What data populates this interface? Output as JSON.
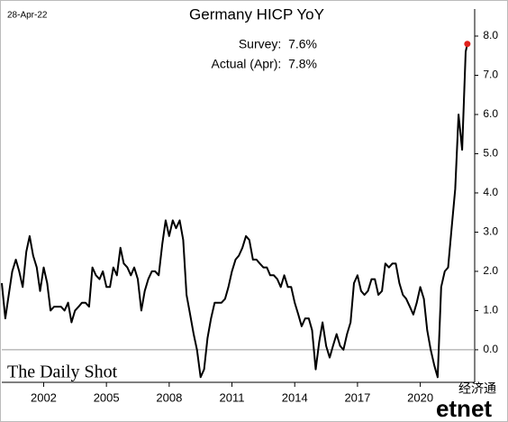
{
  "chart_data": {
    "type": "line",
    "title": "Germany HICP YoY",
    "date": "28-Apr-22",
    "annotations": [
      "Survey:  7.6%",
      "Actual (Apr):  7.8%"
    ],
    "source": "The Daily Shot",
    "watermark": [
      "经济通",
      "etnet"
    ],
    "xlim": [
      2000,
      2022.6
    ],
    "xticks": [
      2002,
      2005,
      2008,
      2011,
      2014,
      2017,
      2020
    ],
    "ylim": [
      -0.83,
      8.69
    ],
    "yticks": [
      {
        "value": 0,
        "label": "0.0"
      },
      {
        "value": 1,
        "label": "1.0"
      },
      {
        "value": 2,
        "label": "2.0"
      },
      {
        "value": 3,
        "label": "3.0"
      },
      {
        "value": 4,
        "label": "4.0"
      },
      {
        "value": 5,
        "label": "5.0"
      },
      {
        "value": 6,
        "label": "6.0"
      },
      {
        "value": 7,
        "label": "7.0"
      },
      {
        "value": 8,
        "label": "8.0"
      }
    ],
    "zero_line": true,
    "last_marker_color": "#e0201b",
    "series": [
      {
        "color": "#000000",
        "x": [
          2000.0,
          2000.17,
          2000.33,
          2000.5,
          2000.67,
          2000.83,
          2001.0,
          2001.17,
          2001.33,
          2001.5,
          2001.67,
          2001.83,
          2002.0,
          2002.17,
          2002.33,
          2002.5,
          2002.67,
          2002.83,
          2003.0,
          2003.17,
          2003.33,
          2003.5,
          2003.67,
          2003.83,
          2004.0,
          2004.17,
          2004.33,
          2004.5,
          2004.67,
          2004.83,
          2005.0,
          2005.17,
          2005.33,
          2005.5,
          2005.67,
          2005.83,
          2006.0,
          2006.17,
          2006.33,
          2006.5,
          2006.67,
          2006.83,
          2007.0,
          2007.17,
          2007.33,
          2007.5,
          2007.67,
          2007.83,
          2008.0,
          2008.17,
          2008.33,
          2008.5,
          2008.67,
          2008.83,
          2009.0,
          2009.17,
          2009.33,
          2009.5,
          2009.67,
          2009.83,
          2010.0,
          2010.17,
          2010.33,
          2010.5,
          2010.67,
          2010.83,
          2011.0,
          2011.17,
          2011.33,
          2011.5,
          2011.67,
          2011.83,
          2012.0,
          2012.17,
          2012.33,
          2012.5,
          2012.67,
          2012.83,
          2013.0,
          2013.17,
          2013.33,
          2013.5,
          2013.67,
          2013.83,
          2014.0,
          2014.17,
          2014.33,
          2014.5,
          2014.67,
          2014.83,
          2015.0,
          2015.17,
          2015.33,
          2015.5,
          2015.67,
          2015.83,
          2016.0,
          2016.17,
          2016.33,
          2016.5,
          2016.67,
          2016.83,
          2017.0,
          2017.17,
          2017.33,
          2017.5,
          2017.67,
          2017.83,
          2018.0,
          2018.17,
          2018.33,
          2018.5,
          2018.67,
          2018.83,
          2019.0,
          2019.17,
          2019.33,
          2019.5,
          2019.67,
          2019.83,
          2020.0,
          2020.17,
          2020.33,
          2020.5,
          2020.67,
          2020.83,
          2021.0,
          2021.17,
          2021.33,
          2021.5,
          2021.67,
          2021.83,
          2022.0,
          2022.17,
          2022.25
        ],
        "values": [
          1.7,
          0.8,
          1.4,
          2.0,
          2.3,
          2.0,
          1.6,
          2.5,
          2.9,
          2.4,
          2.1,
          1.5,
          2.1,
          1.7,
          1.0,
          1.1,
          1.1,
          1.1,
          1.0,
          1.2,
          0.7,
          1.0,
          1.1,
          1.2,
          1.2,
          1.1,
          2.1,
          1.9,
          1.8,
          2.0,
          1.6,
          1.6,
          2.1,
          1.9,
          2.6,
          2.2,
          2.1,
          1.9,
          2.1,
          1.8,
          1.0,
          1.5,
          1.8,
          2.0,
          2.0,
          1.9,
          2.7,
          3.3,
          2.9,
          3.3,
          3.1,
          3.3,
          2.8,
          1.4,
          0.9,
          0.4,
          0.0,
          -0.7,
          -0.5,
          0.3,
          0.8,
          1.2,
          1.2,
          1.2,
          1.3,
          1.6,
          2.0,
          2.3,
          2.4,
          2.6,
          2.9,
          2.8,
          2.3,
          2.3,
          2.2,
          2.1,
          2.1,
          1.9,
          1.9,
          1.8,
          1.6,
          1.9,
          1.6,
          1.6,
          1.2,
          0.9,
          0.6,
          0.8,
          0.8,
          0.5,
          -0.5,
          0.2,
          0.7,
          0.1,
          -0.2,
          0.1,
          0.4,
          0.1,
          0.0,
          0.4,
          0.7,
          1.7,
          1.9,
          1.5,
          1.4,
          1.5,
          1.8,
          1.8,
          1.4,
          1.5,
          2.2,
          2.1,
          2.2,
          2.2,
          1.7,
          1.4,
          1.3,
          1.1,
          0.9,
          1.2,
          1.6,
          1.3,
          0.5,
          0.0,
          -0.4,
          -0.7,
          1.6,
          2.0,
          2.1,
          3.1,
          4.1,
          6.0,
          5.1,
          7.6,
          7.8
        ]
      }
    ]
  }
}
